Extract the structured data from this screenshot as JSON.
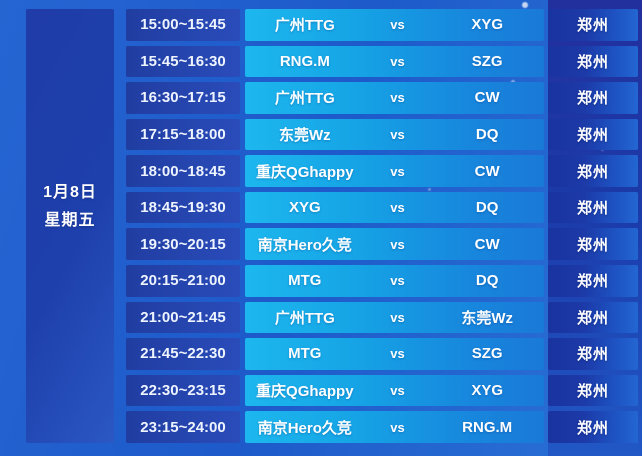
{
  "schedule": {
    "date": {
      "day": "1月8日",
      "weekday": "星期五"
    },
    "vs_label": "vs",
    "rows": [
      {
        "time": "15:00~15:45",
        "home": "广州TTG",
        "away": "XYG",
        "venue": "郑州"
      },
      {
        "time": "15:45~16:30",
        "home": "RNG.M",
        "away": "SZG",
        "venue": "郑州"
      },
      {
        "time": "16:30~17:15",
        "home": "广州TTG",
        "away": "CW",
        "venue": "郑州"
      },
      {
        "time": "17:15~18:00",
        "home": "东莞Wz",
        "away": "DQ",
        "venue": "郑州"
      },
      {
        "time": "18:00~18:45",
        "home": "重庆QGhappy",
        "away": "CW",
        "venue": "郑州"
      },
      {
        "time": "18:45~19:30",
        "home": "XYG",
        "away": "DQ",
        "venue": "郑州"
      },
      {
        "time": "19:30~20:15",
        "home": "南京Hero久竞",
        "away": "CW",
        "venue": "郑州"
      },
      {
        "time": "20:15~21:00",
        "home": "MTG",
        "away": "DQ",
        "venue": "郑州"
      },
      {
        "time": "21:00~21:45",
        "home": "广州TTG",
        "away": "东莞Wz",
        "venue": "郑州"
      },
      {
        "time": "21:45~22:30",
        "home": "MTG",
        "away": "SZG",
        "venue": "郑州"
      },
      {
        "time": "22:30~23:15",
        "home": "重庆QGhappy",
        "away": "XYG",
        "venue": "郑州"
      },
      {
        "time": "23:15~24:00",
        "home": "南京Hero久竞",
        "away": "RNG.M",
        "venue": "郑州"
      }
    ]
  },
  "colors": {
    "background": "#1e5aca",
    "time_cell": "#203da1",
    "match_cell_start": "#1db7ee",
    "match_cell_end": "#1a79d7",
    "venue_cell": "#19339f",
    "date_cell": "#1f3ca8",
    "venue_band": "#22309d",
    "text": "#ffffff"
  }
}
